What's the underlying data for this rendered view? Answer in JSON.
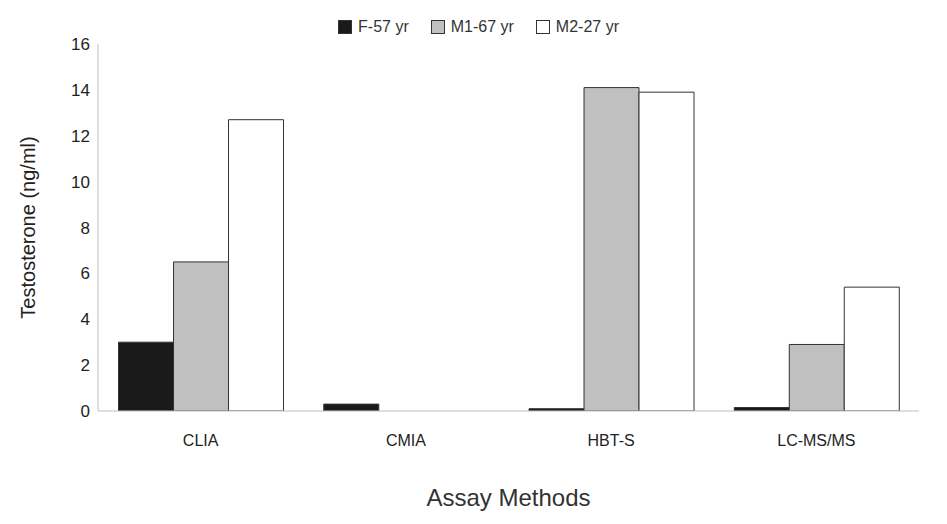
{
  "chart_data": {
    "type": "bar",
    "x_label": "Assay Methods",
    "y_label": "Testosterone (ng/ml)",
    "categories": [
      "CLIA",
      "CMIA",
      "HBT-S",
      "LC-MS/MS"
    ],
    "series": [
      {
        "name": "F-57 yr",
        "color": "#1a1a1a",
        "values": [
          3.0,
          0.3,
          0.1,
          0.15
        ]
      },
      {
        "name": "M1-67 yr",
        "color": "#c0c0c0",
        "values": [
          6.5,
          null,
          14.1,
          2.9
        ]
      },
      {
        "name": "M2-27 yr",
        "color": "#ffffff",
        "values": [
          12.7,
          null,
          13.9,
          5.4
        ]
      }
    ],
    "ylim": [
      0,
      16
    ],
    "yticks": [
      0,
      2,
      4,
      6,
      8,
      10,
      12,
      14,
      16
    ],
    "grid": false,
    "legend": "top"
  }
}
